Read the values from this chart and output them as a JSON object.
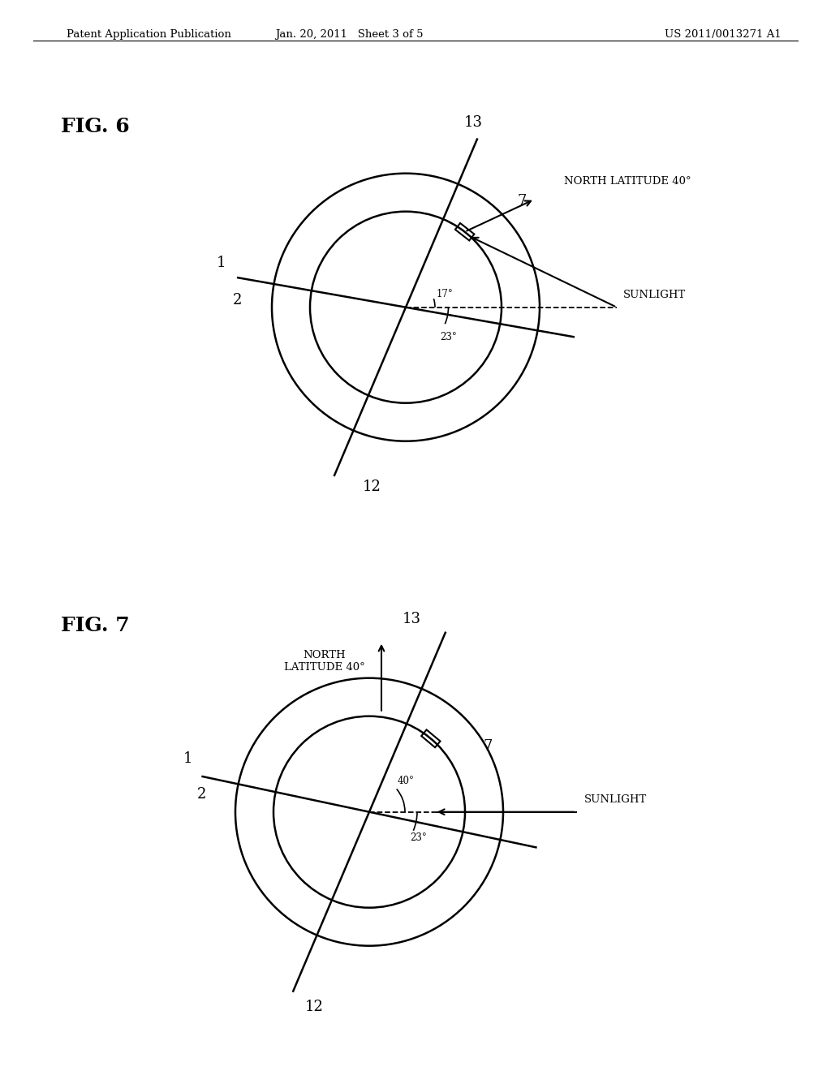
{
  "header_left": "Patent Application Publication",
  "header_mid": "Jan. 20, 2011   Sheet 3 of 5",
  "header_right": "US 2011/0013271 A1",
  "fig6_label": "FIG. 6",
  "fig7_label": "FIG. 7",
  "bg_color": "#ffffff",
  "fig6": {
    "label_north": "NORTH LATITUDE 40°",
    "label_sunlight": "SUNLIGHT",
    "angle_17": "17°",
    "angle_23": "23°",
    "label_1": "1",
    "label_2": "2",
    "label_7": "7",
    "label_12": "12",
    "label_13": "13"
  },
  "fig7": {
    "label_north": "NORTH\nLATITUDE 40°",
    "label_sunlight": "SUNLIGHT",
    "angle_40": "40°",
    "angle_23": "23°",
    "label_1": "1",
    "label_2": "2",
    "label_7": "7",
    "label_12": "12",
    "label_13": "13"
  }
}
